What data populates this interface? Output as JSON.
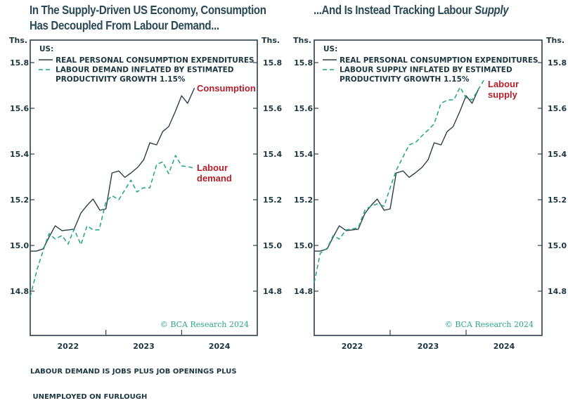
{
  "colors": {
    "consumption": "#2b3f47",
    "labour": "#1fa383",
    "annotation": "#b3202a",
    "axis": "#2b3f47",
    "copyright": "#2aa88a"
  },
  "chart_data": [
    {
      "type": "line",
      "title": "In The Supply-Driven US Economy, Consumption Has Decoupled From Labour Demand...",
      "title_lines": [
        "In The Supply-Driven US Economy, Consumption",
        "Has Decoupled From Labour Demand..."
      ],
      "ylabel_left": "Ths.",
      "ylabel_right": "Ths.",
      "ylim": [
        14.65,
        15.9
      ],
      "yticks": [
        14.8,
        15.0,
        15.2,
        15.4,
        15.6,
        15.8
      ],
      "ytick_labels": [
        "14.8",
        "15.0",
        "15.2",
        "15.4",
        "15.6",
        "15.8"
      ],
      "xlim": [
        2022.0,
        2025.0
      ],
      "xtick_positions": [
        2023.0,
        2024.0
      ],
      "xtick_labels": [
        "2022",
        "2023",
        "2024"
      ],
      "grid": false,
      "legend": {
        "placement": "top-left",
        "header": "US:",
        "entries": [
          "REAL PERSONAL CONSUMPTION EXPENDITURES",
          "LABOUR DEMAND INFLATED BY ESTIMATED",
          "PRODUCTIVITY GROWTH 1.15%"
        ]
      },
      "annotations": [
        {
          "text": [
            "Consumption"
          ],
          "series": "consumption"
        },
        {
          "text": [
            "Labour",
            "demand"
          ],
          "series": "labour"
        }
      ],
      "copyright": "© BCA Research 2024",
      "series": [
        {
          "name": "Real personal consumption expenditures",
          "key": "consumption",
          "style": "solid",
          "x": [
            2022.0,
            2022.08,
            2022.17,
            2022.25,
            2022.33,
            2022.42,
            2022.5,
            2022.58,
            2022.67,
            2022.75,
            2022.83,
            2022.92,
            2023.0,
            2023.08,
            2023.17,
            2023.25,
            2023.33,
            2023.42,
            2023.5,
            2023.58,
            2023.67,
            2023.75,
            2023.83,
            2023.92,
            2024.0,
            2024.08,
            2024.17
          ],
          "values": [
            14.975,
            14.975,
            14.985,
            15.037,
            15.086,
            15.065,
            15.068,
            15.071,
            15.142,
            15.175,
            15.203,
            15.154,
            15.16,
            15.317,
            15.326,
            15.298,
            15.317,
            15.342,
            15.375,
            15.449,
            15.44,
            15.498,
            15.52,
            15.588,
            15.655,
            15.622,
            15.689
          ]
        },
        {
          "name": "Labour demand inflated by estimated productivity growth 1.15%",
          "key": "labour",
          "style": "dashed",
          "x": [
            2022.0,
            2022.09,
            2022.2,
            2022.25,
            2022.33,
            2022.42,
            2022.5,
            2022.58,
            2022.67,
            2022.75,
            2022.83,
            2022.91,
            2023.0,
            2023.08,
            2023.17,
            2023.33,
            2023.41,
            2023.49,
            2023.58,
            2023.67,
            2023.75,
            2023.83,
            2023.92,
            2024.0,
            2024.08,
            2024.17
          ],
          "values": [
            14.775,
            14.895,
            15.006,
            15.052,
            15.028,
            15.043,
            15.006,
            15.071,
            15.003,
            15.086,
            15.068,
            15.068,
            15.191,
            15.218,
            15.2,
            15.286,
            15.234,
            15.252,
            15.252,
            15.354,
            15.366,
            15.314,
            15.394,
            15.348,
            15.345,
            15.338
          ]
        }
      ]
    },
    {
      "type": "line",
      "title": "...And Is Instead Tracking Labour Supply",
      "title_plain": "...And Is Instead Tracking Labour ",
      "title_italic": "Supply",
      "ylabel_left": "Ths.",
      "ylabel_right": "Ths.",
      "ylim": [
        14.65,
        15.9
      ],
      "yticks": [
        14.8,
        15.0,
        15.2,
        15.4,
        15.6,
        15.8
      ],
      "ytick_labels": [
        "14.8",
        "15.0",
        "15.2",
        "15.4",
        "15.6",
        "15.8"
      ],
      "xlim": [
        2022.0,
        2025.0
      ],
      "xtick_positions": [
        2023.0,
        2024.0
      ],
      "xtick_labels": [
        "2022",
        "2023",
        "2024"
      ],
      "grid": false,
      "legend": {
        "placement": "top-left",
        "header": "US:",
        "entries": [
          "REAL PERSONAL CONSUMPTION EXPENDITURES",
          "LABOUR SUPPLY INFLATED BY ESTIMATED",
          "PRODUCTIVITY GROWTH 1.15%"
        ]
      },
      "annotations": [
        {
          "text": [
            "Labour",
            "supply"
          ],
          "series": "labour"
        }
      ],
      "copyright": "© BCA Research 2024",
      "series": [
        {
          "name": "Real personal consumption expenditures",
          "key": "consumption",
          "style": "solid",
          "x": [
            2022.0,
            2022.08,
            2022.17,
            2022.25,
            2022.33,
            2022.42,
            2022.5,
            2022.58,
            2022.67,
            2022.75,
            2022.83,
            2022.92,
            2023.0,
            2023.08,
            2023.17,
            2023.25,
            2023.33,
            2023.42,
            2023.5,
            2023.58,
            2023.67,
            2023.75,
            2023.83,
            2023.92,
            2024.0,
            2024.08,
            2024.17
          ],
          "values": [
            14.975,
            14.975,
            14.985,
            15.037,
            15.086,
            15.065,
            15.068,
            15.071,
            15.142,
            15.175,
            15.203,
            15.154,
            15.16,
            15.317,
            15.326,
            15.298,
            15.317,
            15.342,
            15.375,
            15.449,
            15.44,
            15.498,
            15.52,
            15.588,
            15.655,
            15.622,
            15.689
          ]
        },
        {
          "name": "Labour supply inflated by estimated productivity growth 1.15%",
          "key": "labour",
          "style": "dashed",
          "x": [
            2022.0,
            2022.08,
            2022.17,
            2022.25,
            2022.33,
            2022.42,
            2022.58,
            2022.67,
            2022.75,
            2022.83,
            2022.92,
            2023.0,
            2023.08,
            2023.17,
            2023.25,
            2023.34,
            2023.42,
            2023.5,
            2023.58,
            2023.67,
            2023.76,
            2023.84,
            2023.92,
            2024.0,
            2024.08,
            2024.24
          ],
          "values": [
            14.837,
            14.966,
            14.988,
            15.043,
            15.028,
            15.068,
            15.077,
            15.157,
            15.172,
            15.182,
            15.172,
            15.252,
            15.329,
            15.388,
            15.44,
            15.452,
            15.48,
            15.505,
            15.532,
            15.622,
            15.637,
            15.637,
            15.692,
            15.646,
            15.637,
            15.726
          ]
        }
      ]
    }
  ],
  "footnote": [
    "LABOUR DEMAND IS JOBS PLUS JOB OPENINGS PLUS",
    " UNEMPLOYED ON FURLOUGH"
  ]
}
